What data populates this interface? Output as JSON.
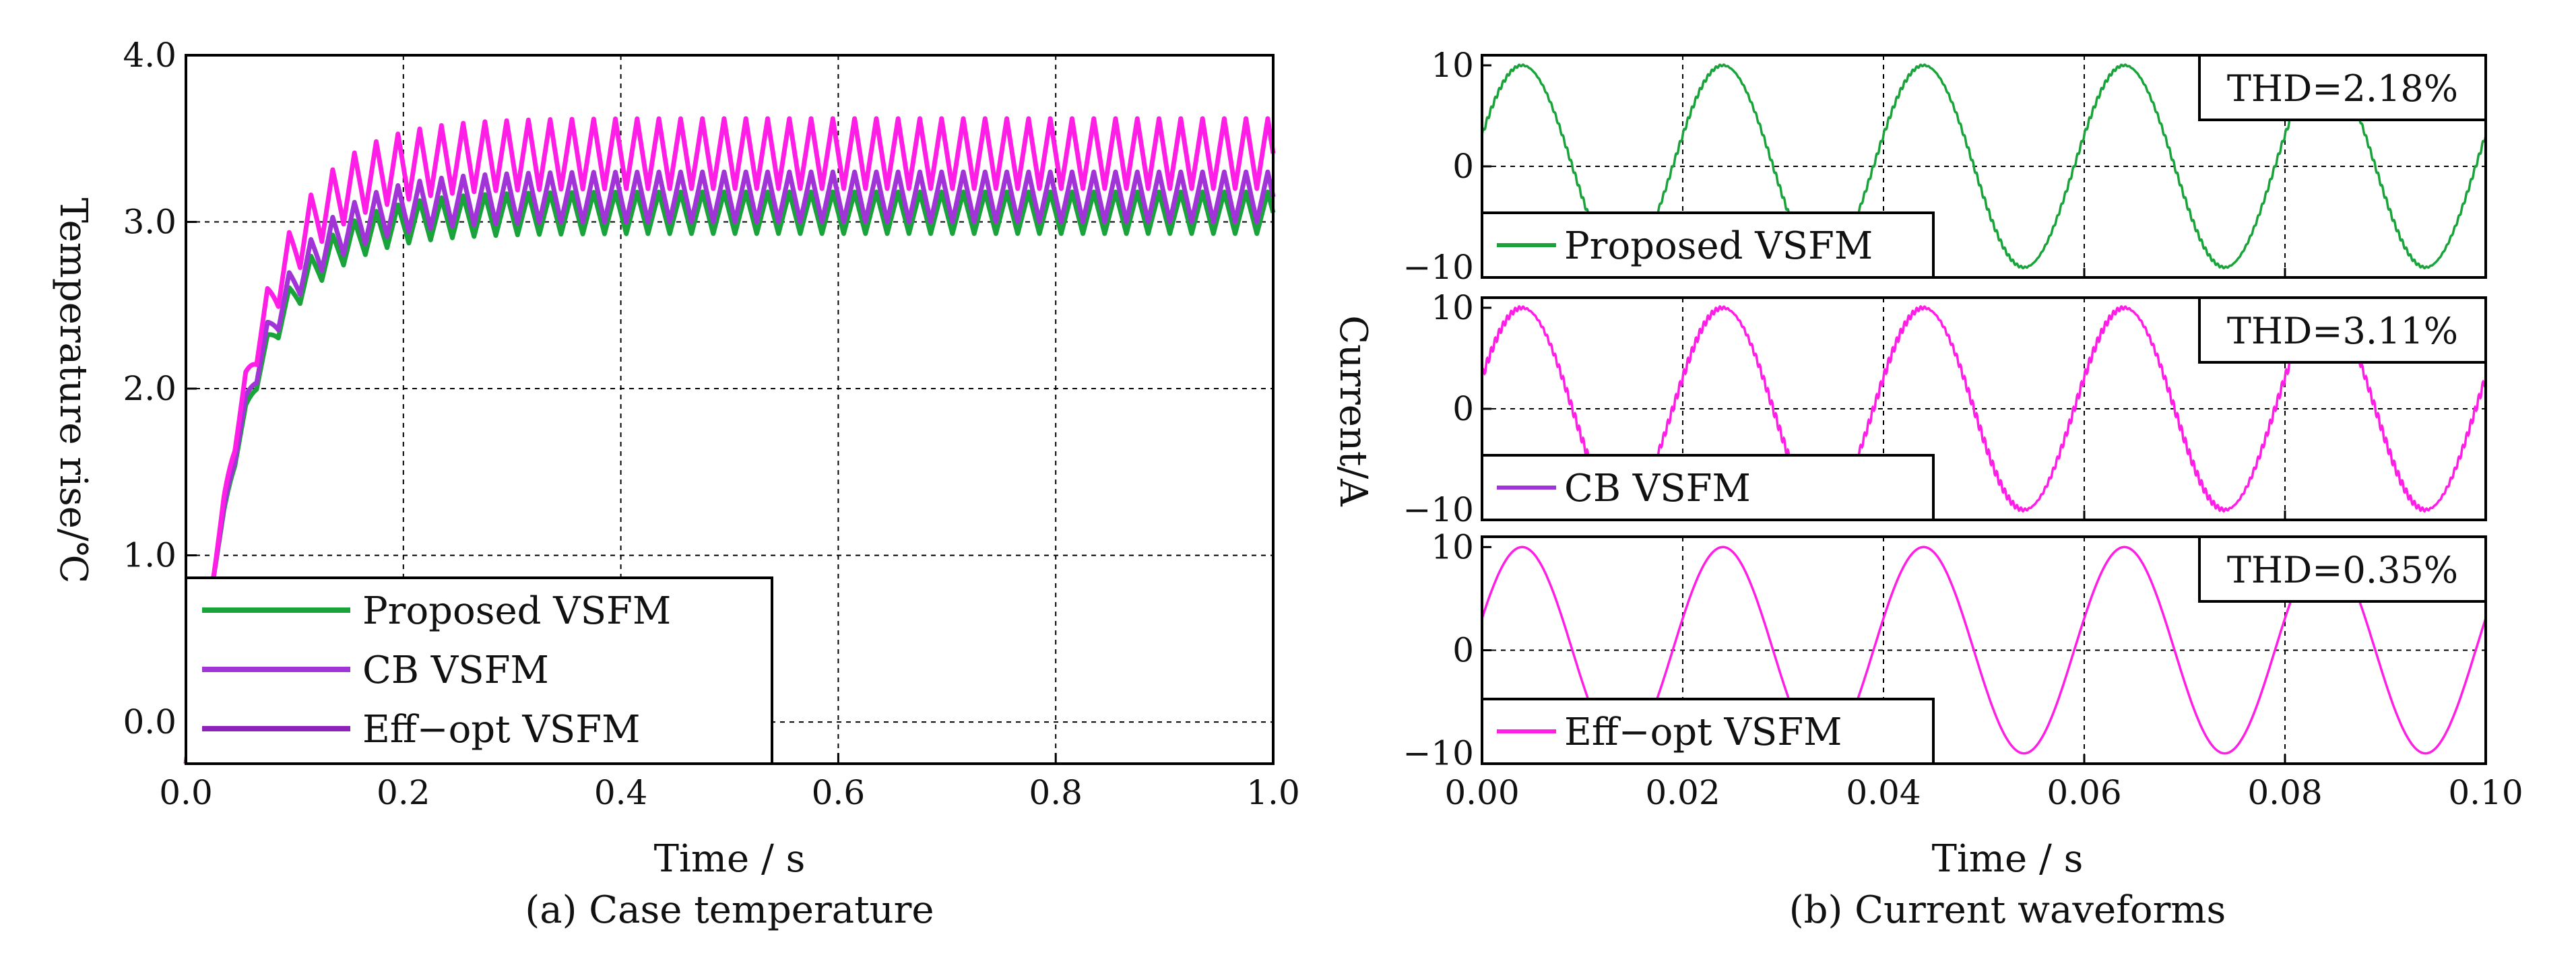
{
  "colors": {
    "proposed": "#1aa33a",
    "cb": "#a034d6",
    "effopt": "#ff1ee6",
    "effopt_legend": "#8e22b8"
  },
  "chart_data": [
    {
      "type": "line",
      "caption": "(a) Case temperature",
      "xlabel": "Time / s",
      "ylabel": "Temperature rise/℃",
      "xlim": [
        0,
        1
      ],
      "ylim": [
        -0.25,
        4.0
      ],
      "xticks": [
        "0.0",
        "0.2",
        "0.4",
        "0.6",
        "0.8",
        "1.0"
      ],
      "yticks": [
        "0.0",
        "1.0",
        "2.0",
        "3.0",
        "4.0"
      ],
      "grid": true,
      "legend_position": "bottom-left",
      "series": [
        {
          "name": "Proposed VSFM",
          "steady_min": 2.93,
          "steady_max": 3.18,
          "tau": 0.05,
          "ripple_period": 0.02
        },
        {
          "name": "CB VSFM",
          "steady_min": 3.0,
          "steady_max": 3.3,
          "tau": 0.05,
          "ripple_period": 0.02
        },
        {
          "name": "Eff−opt VSFM",
          "steady_min": 3.2,
          "steady_max": 3.62,
          "tau": 0.05,
          "ripple_period": 0.02
        }
      ]
    },
    {
      "type": "line",
      "caption": "(b) Current waveforms",
      "xlabel": "Time / s",
      "ylabel": "Current/A",
      "xlim": [
        0,
        0.1
      ],
      "xticks": [
        "0.00",
        "0.02",
        "0.04",
        "0.06",
        "0.08",
        "0.10"
      ],
      "panels": [
        {
          "legend": "Proposed VSFM",
          "thd": "THD=2.18%",
          "amplitude": 10,
          "frequency_hz": 50,
          "ylim": [
            -11,
            11
          ],
          "yticks": [
            "10",
            "0",
            "−10"
          ]
        },
        {
          "legend": "CB VSFM",
          "thd": "THD=3.11%",
          "amplitude": 10,
          "frequency_hz": 50,
          "ylim": [
            -11,
            11
          ],
          "yticks": [
            "10",
            "0",
            "−10"
          ]
        },
        {
          "legend": "Eff−opt VSFM",
          "thd": "THD=0.35%",
          "amplitude": 10,
          "frequency_hz": 50,
          "ylim": [
            -11,
            11
          ],
          "yticks": [
            "10",
            "0",
            "−10"
          ]
        }
      ]
    }
  ]
}
